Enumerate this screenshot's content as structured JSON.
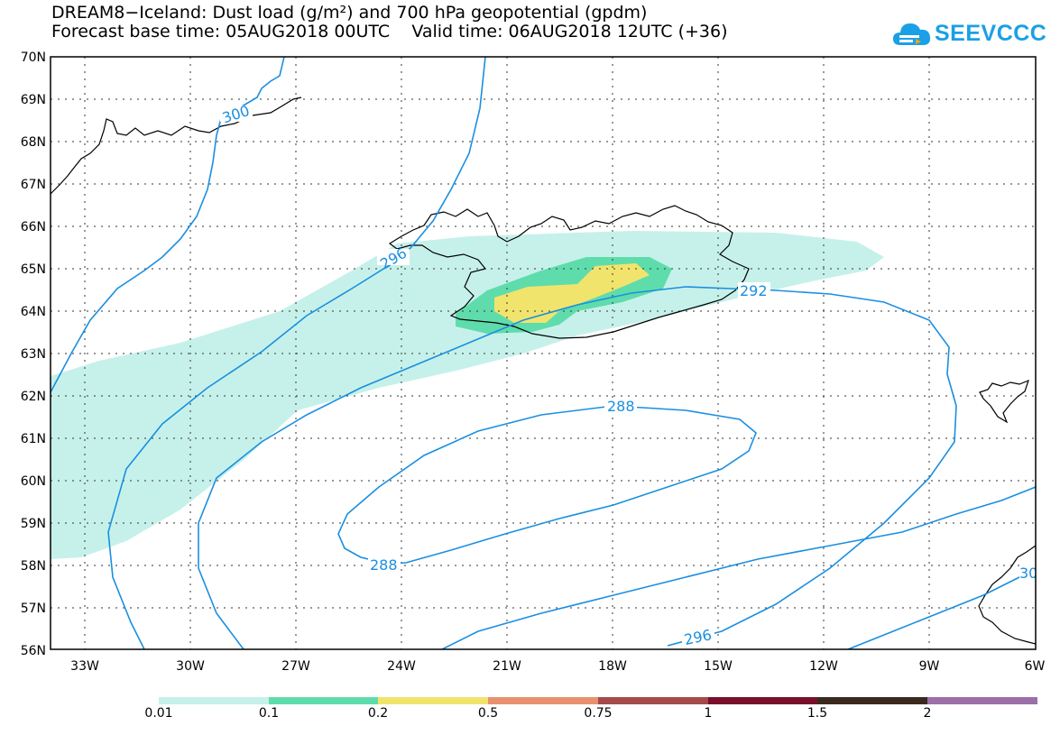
{
  "header": {
    "title_line1": "DREAM8−Iceland: Dust load (g/m²) and 700 hPa geopotential (gpdm)",
    "title_line2": "Forecast base time: 05AUG2018 00UTC    Valid time: 06AUG2018 12UTC (+36)"
  },
  "logo": {
    "text": "SEEVCCC",
    "icon": "cloud-icon",
    "color": "#1aa0e6"
  },
  "map": {
    "lat_ticks": [
      "70N",
      "69N",
      "68N",
      "67N",
      "66N",
      "65N",
      "64N",
      "63N",
      "62N",
      "61N",
      "60N",
      "59N",
      "58N",
      "57N",
      "56N"
    ],
    "lon_ticks": [
      "33W",
      "30W",
      "27W",
      "24W",
      "21W",
      "18W",
      "15W",
      "12W",
      "9W",
      "6W"
    ],
    "contour_labels": [
      "300",
      "296",
      "292",
      "288",
      "288",
      "296",
      "30"
    ],
    "contour_color": "#1a8fe0",
    "dust_colors": {
      "0.01": "#c6f1ea",
      "0.1": "#5fdcab",
      "0.2": "#f1e46c"
    }
  },
  "legend": {
    "labels": [
      "0.01",
      "0.1",
      "0.2",
      "0.5",
      "0.75",
      "1",
      "1.5",
      "2"
    ],
    "colors": [
      "#c6f1ea",
      "#5fdcab",
      "#f1e46c",
      "#e8906f",
      "#a44a4a",
      "#7a0f2b",
      "#3a2a1e",
      "#9b6fa8"
    ]
  }
}
